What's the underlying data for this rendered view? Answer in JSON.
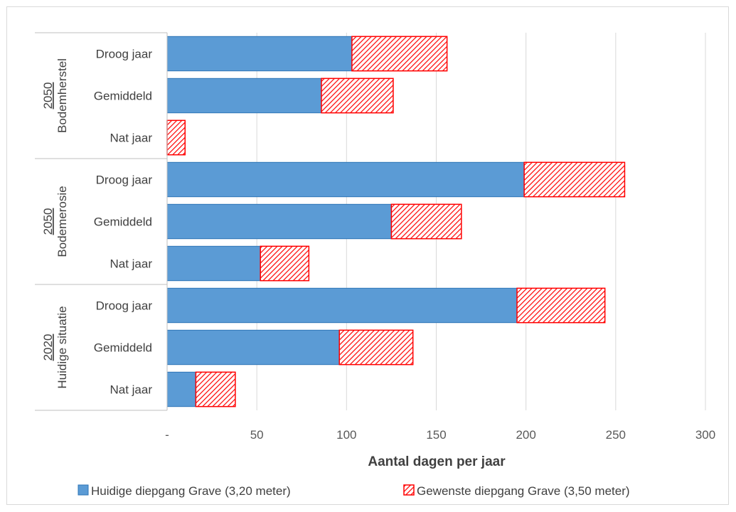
{
  "chart_data": {
    "type": "bar",
    "orientation": "horizontal",
    "stacked": true,
    "groups": [
      {
        "line1": "2050",
        "line2": "Bodemherstel",
        "categories": [
          "Droog jaar",
          "Gemiddeld",
          "Nat jaar"
        ]
      },
      {
        "line1": "2050",
        "line2": "Bodemerosie",
        "categories": [
          "Droog jaar",
          "Gemiddeld",
          "Nat jaar"
        ]
      },
      {
        "line1": "2020",
        "line2": "Huidige situatie",
        "categories": [
          "Droog jaar",
          "Gemiddeld",
          "Nat jaar"
        ]
      }
    ],
    "series": [
      {
        "name": "Huidige diepgang Grave (3,20 meter)",
        "color": "#5b9bd5",
        "border": "#2e75b6",
        "pattern": "solid",
        "values": [
          103,
          86,
          0,
          199,
          125,
          52,
          195,
          96,
          16
        ]
      },
      {
        "name": "Gewenste diepgang Grave (3,50 meter)",
        "color": "#ff0000",
        "border": "#ff0000",
        "pattern": "diagonal-hatch",
        "values": [
          53,
          40,
          10,
          56,
          39,
          27,
          49,
          41,
          22
        ]
      }
    ],
    "xlabel": "Aantal dagen per jaar",
    "xlim": [
      0,
      300
    ],
    "xticks": [
      {
        "value": 0,
        "label": "-"
      },
      {
        "value": 50,
        "label": "50"
      },
      {
        "value": 100,
        "label": "100"
      },
      {
        "value": 150,
        "label": "150"
      },
      {
        "value": 200,
        "label": "200"
      },
      {
        "value": 250,
        "label": "250"
      },
      {
        "value": 300,
        "label": "300"
      }
    ],
    "grid": true,
    "legend_position": "bottom"
  }
}
